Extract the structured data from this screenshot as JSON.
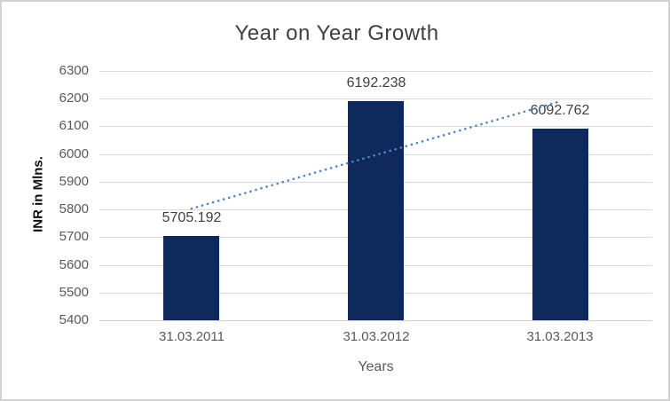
{
  "chart_data": {
    "type": "bar",
    "title": "Year on Year Growth",
    "categories": [
      "31.03.2011",
      "31.03.2012",
      "31.03.2013"
    ],
    "values": [
      5705.192,
      6192.238,
      6092.762
    ],
    "data_labels": [
      "5705.192",
      "6192.238",
      "6092.762"
    ],
    "xlabel": "Years",
    "ylabel": "INR in Mlns.",
    "ylim": [
      5400,
      6300
    ],
    "yticks": [
      6300,
      6200,
      6100,
      6000,
      5900,
      5800,
      5700,
      5600,
      5500,
      5400
    ],
    "grid": true,
    "legend": "none",
    "trendline": {
      "type": "linear",
      "style": "dotted"
    },
    "colors": {
      "bar": "#10295c",
      "trendline": "#4e86c8",
      "gridline": "#d9d9d9",
      "axis_line": "#d0d0d0",
      "title_text": "#404040",
      "tick_text": "#595959",
      "data_label_text": "#404040",
      "border": "#d2d2d2",
      "background": "#ffffff"
    }
  }
}
